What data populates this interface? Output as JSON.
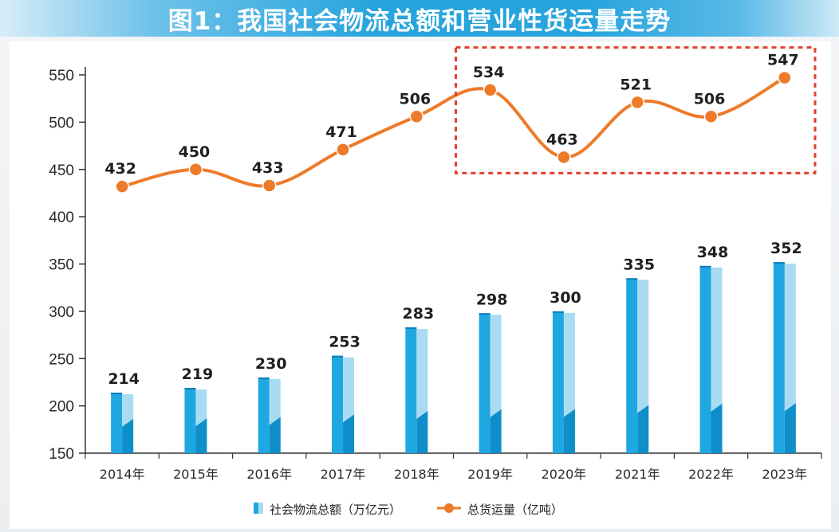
{
  "title": "图1：我国社会物流总额和营业性货运量走势",
  "chart_data": {
    "type": "bar+line",
    "categories": [
      "2014年",
      "2015年",
      "2016年",
      "2017年",
      "2018年",
      "2019年",
      "2020年",
      "2021年",
      "2022年",
      "2023年"
    ],
    "series": [
      {
        "name": "社会物流总额（万亿元）",
        "type": "bar",
        "color": "#1ea7e1",
        "values": [
          214,
          219,
          230,
          253,
          283,
          298,
          300,
          335,
          348,
          352
        ]
      },
      {
        "name": "总货运量（亿吨）",
        "type": "line",
        "color": "#ee7a2a",
        "values": [
          432,
          450,
          433,
          471,
          506,
          534,
          463,
          521,
          506,
          547
        ]
      }
    ],
    "ylim": [
      150,
      550
    ],
    "yticks": [
      150,
      200,
      250,
      300,
      350,
      400,
      450,
      500,
      550
    ],
    "highlight": {
      "from": "2019年",
      "to": "2023年",
      "style": "red dashed box around line"
    },
    "legend": "bottom-center"
  }
}
